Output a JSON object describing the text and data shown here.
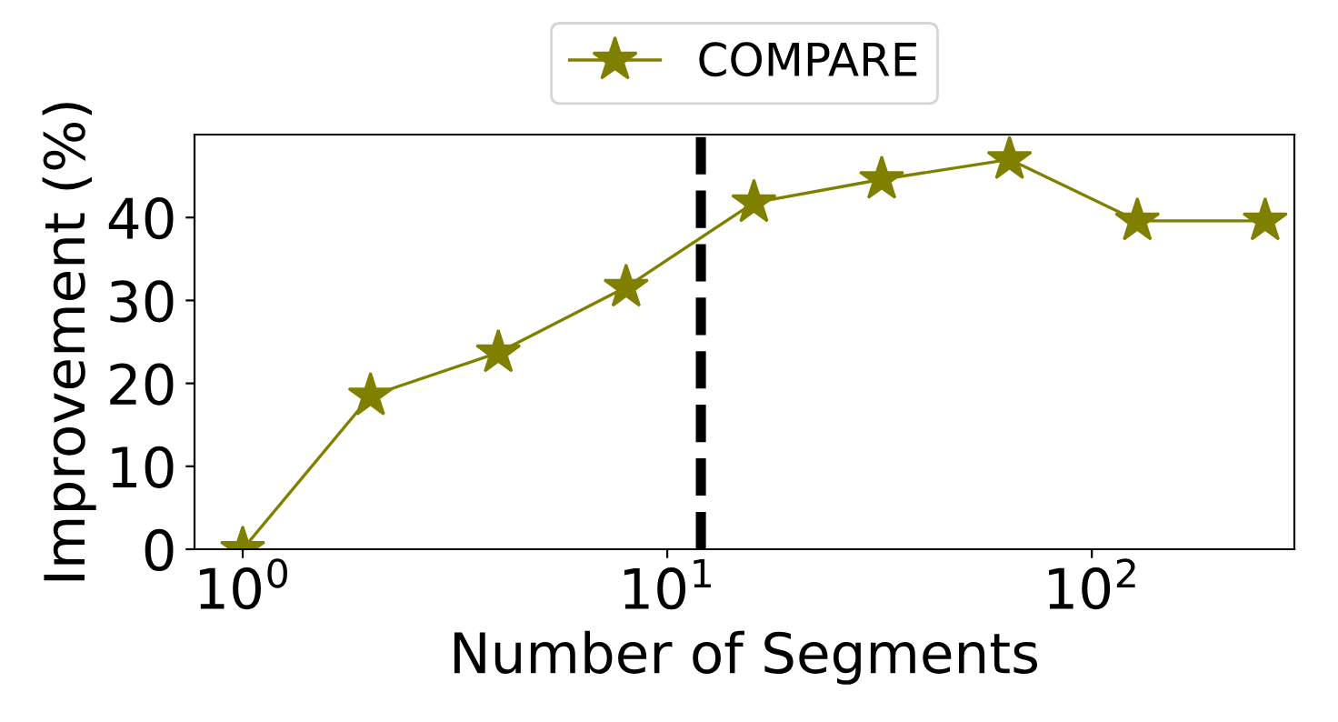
{
  "chart_data": {
    "type": "line",
    "xlabel": "Number of Segments",
    "ylabel": "Improvement (%)",
    "x": [
      1,
      2,
      4,
      8,
      16,
      32,
      64,
      128,
      256
    ],
    "series": [
      {
        "name": "COMPARE",
        "color": "#808000",
        "values": [
          0,
          18.5,
          23.7,
          31.6,
          41.8,
          44.6,
          47.0,
          39.6,
          39.6
        ]
      }
    ],
    "log": "x",
    "xlim": [
      0.77,
      300
    ],
    "xticks": [
      {
        "value": 1,
        "label": "10$^{0}$"
      },
      {
        "value": 10,
        "label": "10$^{1}$"
      },
      {
        "value": 100,
        "label": "10$^{2}$"
      }
    ],
    "ylim": [
      0,
      50
    ],
    "yticks": [
      0,
      10,
      20,
      30,
      40
    ],
    "ref_lines": [
      {
        "axis": "x",
        "value": 12,
        "label": null,
        "color": "#000000",
        "line_style": "dashed"
      }
    ],
    "marker": "star",
    "line_style": "solid",
    "grid": false,
    "legend": "top"
  }
}
